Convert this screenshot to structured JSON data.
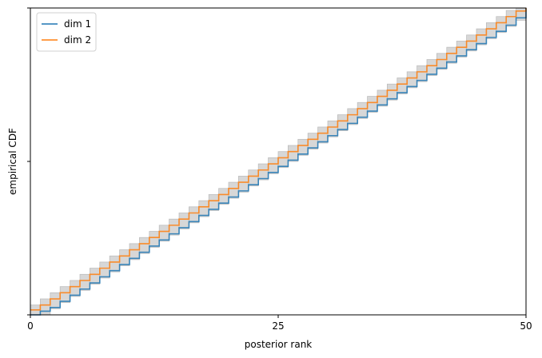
{
  "chart_data": {
    "type": "line",
    "title": "",
    "xlabel": "posterior rank",
    "ylabel": "empirical CDF",
    "xlim": [
      0,
      50
    ],
    "ylim": [
      0,
      1
    ],
    "xticks": [
      0,
      25,
      50
    ],
    "xtick_labels": [
      "0",
      "25",
      "50"
    ],
    "yticks": [
      0,
      0.5,
      1
    ],
    "ytick_labels": [
      "",
      "",
      ""
    ],
    "grid": false,
    "legend_position": "top-left",
    "confidence_band": {
      "color": "#d3d3d3",
      "half_width_steps": 1
    },
    "series": [
      {
        "name": "dim 1",
        "color": "#1f77b4",
        "step": "post",
        "x": [
          0,
          1,
          2,
          3,
          4,
          5,
          6,
          7,
          8,
          9,
          10,
          11,
          12,
          13,
          14,
          15,
          16,
          17,
          18,
          19,
          20,
          21,
          22,
          23,
          24,
          25,
          26,
          27,
          28,
          29,
          30,
          31,
          32,
          33,
          34,
          35,
          36,
          37,
          38,
          39,
          40,
          41,
          42,
          43,
          44,
          45,
          46,
          47,
          48,
          49,
          50
        ],
        "y": [
          0.0,
          0.012,
          0.024,
          0.044,
          0.064,
          0.084,
          0.104,
          0.124,
          0.144,
          0.164,
          0.184,
          0.204,
          0.224,
          0.244,
          0.264,
          0.284,
          0.304,
          0.324,
          0.344,
          0.364,
          0.384,
          0.404,
          0.424,
          0.444,
          0.464,
          0.484,
          0.504,
          0.524,
          0.544,
          0.564,
          0.584,
          0.604,
          0.624,
          0.644,
          0.664,
          0.684,
          0.704,
          0.724,
          0.744,
          0.764,
          0.784,
          0.804,
          0.824,
          0.844,
          0.864,
          0.884,
          0.904,
          0.924,
          0.944,
          0.968,
          1.0
        ]
      },
      {
        "name": "dim 2",
        "color": "#ff7f0e",
        "step": "post",
        "x": [
          0,
          1,
          2,
          3,
          4,
          5,
          6,
          7,
          8,
          9,
          10,
          11,
          12,
          13,
          14,
          15,
          16,
          17,
          18,
          19,
          20,
          21,
          22,
          23,
          24,
          25,
          26,
          27,
          28,
          29,
          30,
          31,
          32,
          33,
          34,
          35,
          36,
          37,
          38,
          39,
          40,
          41,
          42,
          43,
          44,
          45,
          46,
          47,
          48,
          49,
          50
        ],
        "y": [
          0.016,
          0.032,
          0.052,
          0.072,
          0.092,
          0.112,
          0.132,
          0.152,
          0.172,
          0.192,
          0.212,
          0.232,
          0.252,
          0.272,
          0.292,
          0.312,
          0.332,
          0.352,
          0.372,
          0.392,
          0.412,
          0.432,
          0.452,
          0.472,
          0.492,
          0.512,
          0.532,
          0.552,
          0.572,
          0.592,
          0.612,
          0.632,
          0.652,
          0.672,
          0.692,
          0.712,
          0.732,
          0.752,
          0.772,
          0.792,
          0.812,
          0.832,
          0.852,
          0.872,
          0.892,
          0.912,
          0.932,
          0.952,
          0.972,
          0.99,
          1.0
        ]
      }
    ]
  }
}
